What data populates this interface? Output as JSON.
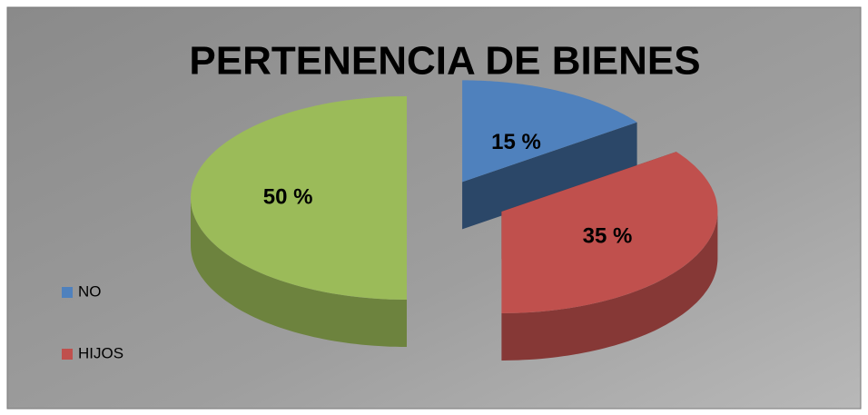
{
  "chart_data": {
    "type": "pie3d",
    "title": "PERTENENCIA DE BIENES",
    "categories": [
      "NO",
      "HIJOS",
      null
    ],
    "values": [
      15,
      35,
      50
    ],
    "value_labels": [
      "15 %",
      "35 %",
      "50 %"
    ],
    "colors": [
      "#4f81bd",
      "#c0504d",
      "#9bbb59"
    ],
    "legend": "left"
  }
}
